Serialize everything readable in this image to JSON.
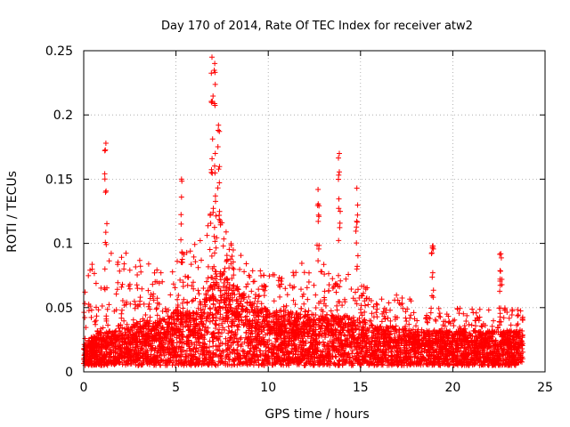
{
  "chart_data": {
    "type": "scatter",
    "title": "Day 170 of 2014, Rate Of TEC Index for receiver atw2",
    "xlabel": "GPS time / hours",
    "ylabel": "ROTI / TECUs",
    "xlim": [
      0,
      25
    ],
    "ylim": [
      0,
      0.25
    ],
    "x_ticks": [
      0,
      5,
      10,
      15,
      20,
      25
    ],
    "y_ticks": [
      0,
      0.05,
      0.1,
      0.15,
      0.2,
      0.25
    ],
    "x_tick_labels": [
      "0",
      "5",
      "10",
      "15",
      "20",
      "25"
    ],
    "y_tick_labels": [
      "0",
      "0.05",
      "0.1",
      "0.15",
      "0.2",
      "0.25"
    ],
    "grid": true,
    "marker": "+",
    "series_color": "#ff0000",
    "x_range_hours": [
      0,
      23.8
    ],
    "envelope": {
      "hours": [
        0,
        1,
        2,
        3,
        4,
        5,
        6,
        6.5,
        7,
        7.5,
        8,
        9,
        10,
        11,
        12,
        13,
        14,
        15,
        16,
        17,
        18,
        19,
        20,
        21,
        22,
        23,
        23.8
      ],
      "base": [
        0.015,
        0.02,
        0.02,
        0.025,
        0.025,
        0.03,
        0.03,
        0.035,
        0.045,
        0.05,
        0.045,
        0.035,
        0.03,
        0.03,
        0.028,
        0.028,
        0.028,
        0.025,
        0.022,
        0.022,
        0.02,
        0.02,
        0.02,
        0.02,
        0.02,
        0.02,
        0.02
      ],
      "upper": [
        0.08,
        0.09,
        0.095,
        0.09,
        0.085,
        0.09,
        0.1,
        0.11,
        0.13,
        0.12,
        0.1,
        0.085,
        0.08,
        0.085,
        0.085,
        0.085,
        0.08,
        0.07,
        0.06,
        0.06,
        0.055,
        0.05,
        0.05,
        0.05,
        0.05,
        0.05,
        0.05
      ]
    },
    "spikes": [
      {
        "x": 1.2,
        "ymax": 0.178
      },
      {
        "x": 5.3,
        "ymax": 0.15
      },
      {
        "x": 6.95,
        "ymax": 0.245
      },
      {
        "x": 7.1,
        "ymax": 0.24
      },
      {
        "x": 7.3,
        "ymax": 0.192
      },
      {
        "x": 12.7,
        "ymax": 0.142
      },
      {
        "x": 13.85,
        "ymax": 0.17
      },
      {
        "x": 14.8,
        "ymax": 0.143
      },
      {
        "x": 18.9,
        "ymax": 0.098
      },
      {
        "x": 22.6,
        "ymax": 0.092
      }
    ]
  }
}
